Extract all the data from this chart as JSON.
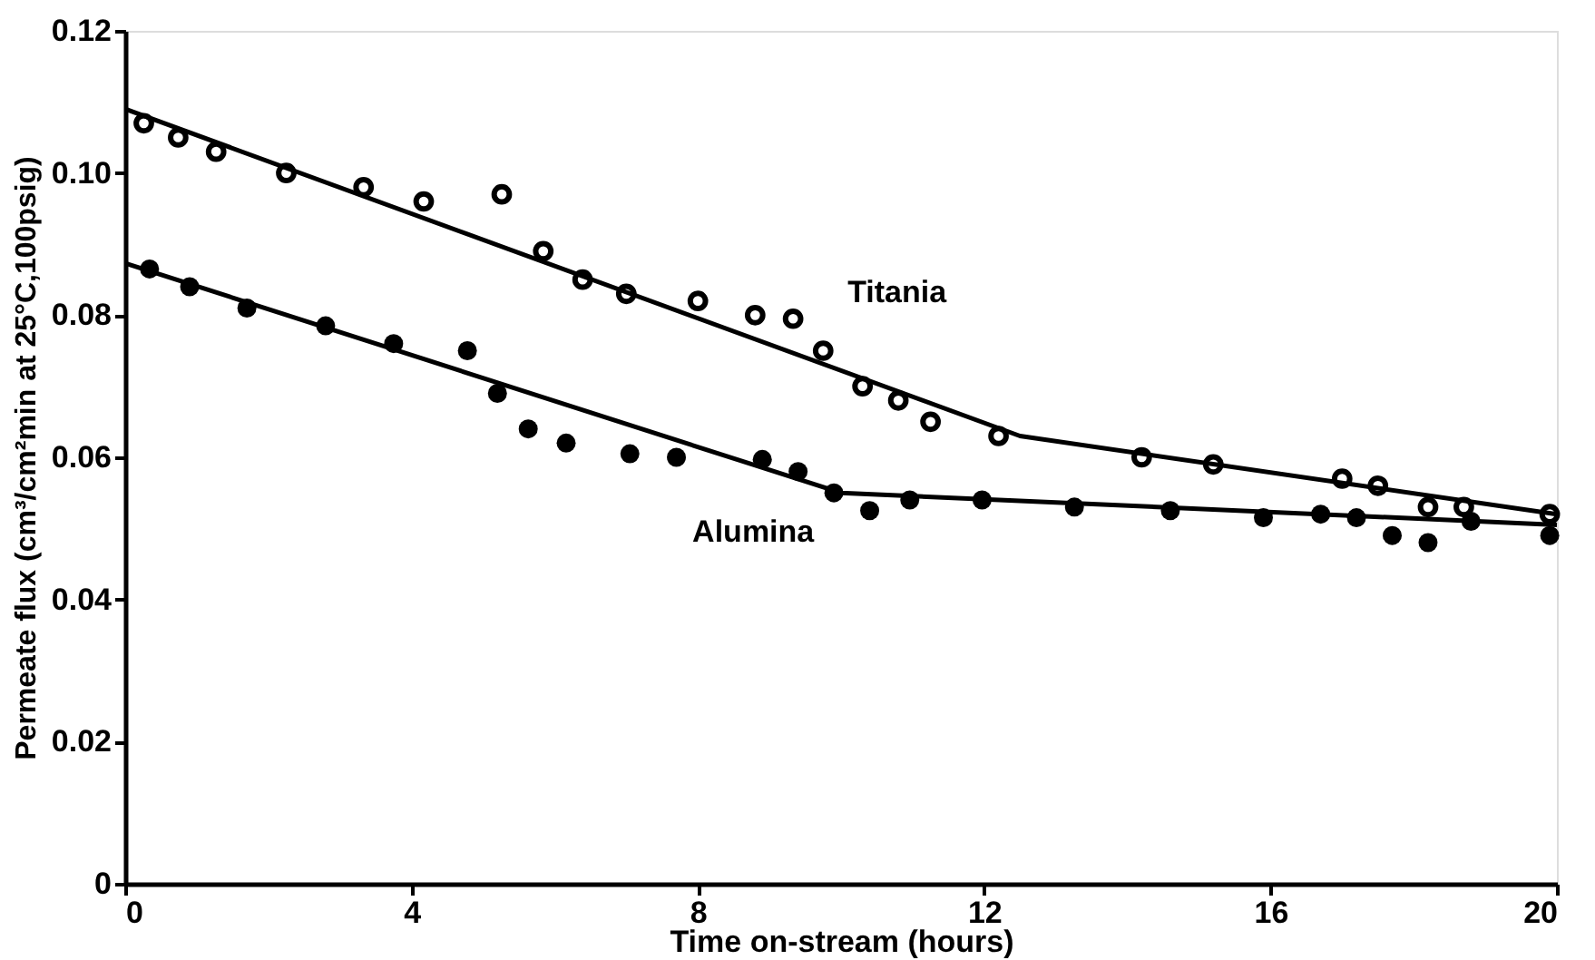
{
  "chart_data": {
    "type": "scatter",
    "xlabel": "Time on-stream (hours)",
    "ylabel": "Permeate flux (cm³/cm²min at 25°C,100psig)",
    "xlim": [
      0,
      20
    ],
    "xticks": [
      0,
      4,
      8,
      12,
      16,
      20
    ],
    "ylim": [
      0,
      0.12
    ],
    "yticks": [
      0,
      {
        "value": 0.02,
        "label": "0.02"
      },
      {
        "value": 0.04,
        "label": "0.04"
      },
      {
        "value": 0.06,
        "label": "0.06"
      },
      {
        "value": 0.08,
        "label": "0.08"
      },
      {
        "value": 0.1,
        "label": "0.10"
      },
      0.12
    ],
    "grid": false,
    "legend": false,
    "marker": "circle",
    "series": [
      {
        "name": "Titania",
        "color": "#000000",
        "x": [
          0.26,
          0.74,
          1.27,
          2.25,
          3.33,
          4.17,
          5.26,
          5.84,
          6.39,
          7.0,
          8.0,
          8.8,
          9.33,
          9.75,
          10.3,
          10.8,
          11.25,
          12.2,
          14.2,
          15.2,
          17.0,
          17.5,
          18.2,
          18.7,
          19.9
        ],
        "values": [
          0.107,
          0.105,
          0.103,
          0.1,
          0.098,
          0.096,
          0.097,
          0.089,
          0.085,
          0.083,
          0.082,
          0.08,
          0.0795,
          0.075,
          0.07,
          0.068,
          0.065,
          0.063,
          0.06,
          0.059,
          0.057,
          0.056,
          0.053,
          0.053,
          0.052
        ]
      },
      {
        "name": "Alumina",
        "color": "#000000",
        "x": [
          0.34,
          0.9,
          1.7,
          2.8,
          3.75,
          4.78,
          5.2,
          5.63,
          6.16,
          7.05,
          7.7,
          8.9,
          9.4,
          9.9,
          10.4,
          10.96,
          11.97,
          13.26,
          14.6,
          15.9,
          16.7,
          17.2,
          17.7,
          18.2,
          18.8,
          19.9
        ],
        "values": [
          0.0865,
          0.084,
          0.081,
          0.0785,
          0.076,
          0.075,
          0.069,
          0.064,
          0.062,
          0.0605,
          0.06,
          0.0597,
          0.058,
          0.055,
          0.0525,
          0.054,
          0.054,
          0.053,
          0.0525,
          0.0515,
          0.052,
          0.0515,
          0.049,
          0.048,
          0.051,
          0.049
        ]
      },
      {
        "type": "line",
        "line_style": "solid",
        "marker": "none",
        "color": "#000000",
        "x": [
          0,
          12.5,
          20
        ],
        "values": [
          0.109,
          0.063,
          0.052
        ]
      },
      {
        "type": "line",
        "line_style": "solid",
        "marker": "none",
        "color": "#000000",
        "x": [
          0,
          10,
          20
        ],
        "values": [
          0.0873,
          0.055,
          0.0505
        ]
      }
    ]
  }
}
